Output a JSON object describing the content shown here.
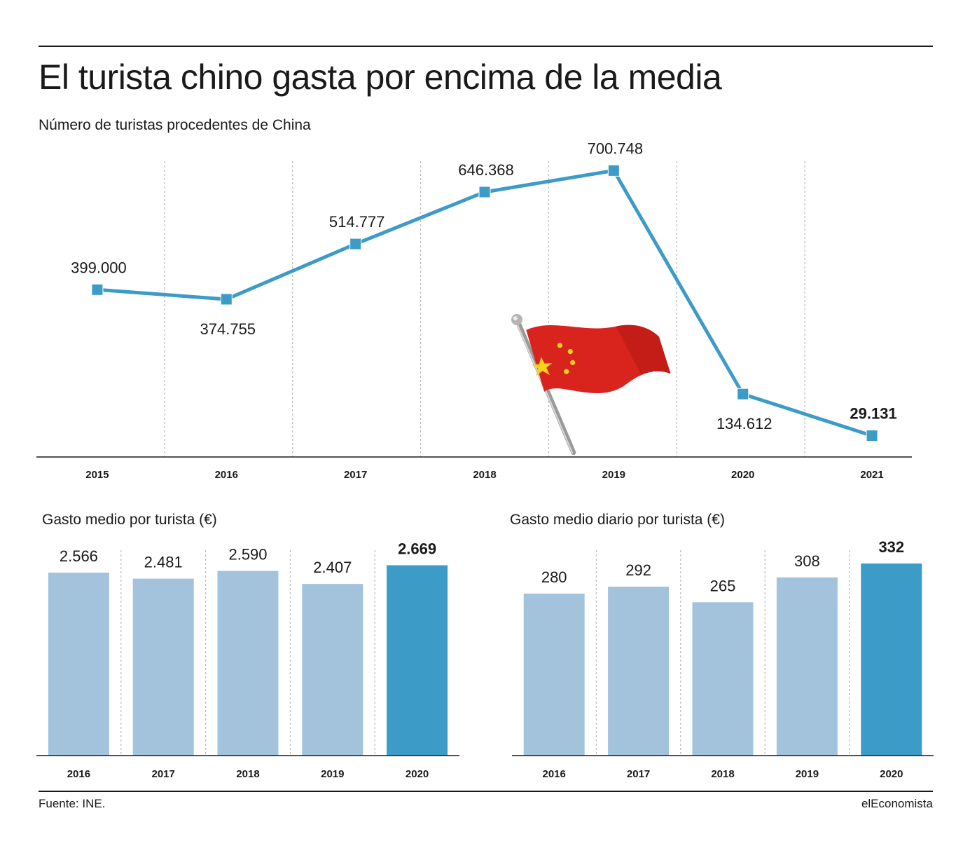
{
  "header": {
    "title": "El turista chino gasta por encima de la media"
  },
  "footer": {
    "source": "Fuente: INE.",
    "brand": "elEconomista"
  },
  "colors": {
    "line": "#3d9bc7",
    "bar_light": "#a3c3dc",
    "bar_highlight": "#3d9bc7",
    "grid": "#bbbbbb",
    "axis": "#1a1a1a"
  },
  "icons": [
    "china-flag-icon"
  ],
  "chart_data": [
    {
      "type": "line",
      "title": "Número de turistas procedentes de China",
      "x": [
        "2015",
        "2016",
        "2017",
        "2018",
        "2019",
        "2020",
        "2021"
      ],
      "values": [
        399000,
        374755,
        514777,
        646368,
        700748,
        134612,
        29131
      ],
      "labels": [
        "399.000",
        "374.755",
        "514.777",
        "646.368",
        "700.748",
        "134.612",
        "29.131"
      ],
      "highlight_index": 6,
      "ylim": [
        0,
        760000
      ],
      "grid": "vertical dotted"
    },
    {
      "type": "bar",
      "title": "Gasto medio por turista (€)",
      "categories": [
        "2016",
        "2017",
        "2018",
        "2019",
        "2020"
      ],
      "values": [
        2566,
        2481,
        2590,
        2407,
        2669
      ],
      "labels": [
        "2.566",
        "2.481",
        "2.590",
        "2.407",
        "2.669"
      ],
      "highlight_index": 4,
      "ylim": [
        0,
        2880
      ],
      "grid": "vertical dotted"
    },
    {
      "type": "bar",
      "title": "Gasto medio diario por turista (€)",
      "categories": [
        "2016",
        "2017",
        "2018",
        "2019",
        "2020"
      ],
      "values": [
        280,
        292,
        265,
        308,
        332
      ],
      "labels": [
        "280",
        "292",
        "265",
        "308",
        "332"
      ],
      "highlight_index": 4,
      "ylim": [
        0,
        355
      ],
      "grid": "vertical dotted"
    }
  ]
}
